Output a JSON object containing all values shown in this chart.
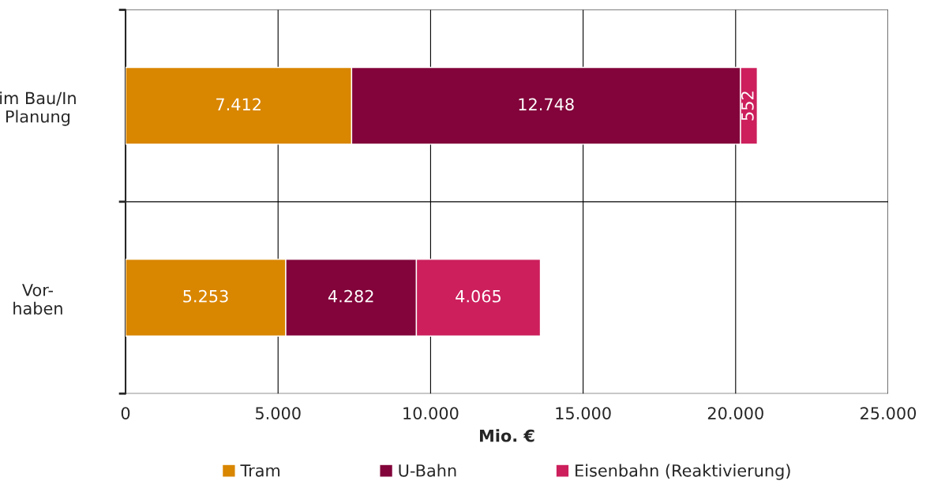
{
  "chart_data": {
    "type": "bar",
    "orientation": "horizontal",
    "stacked": true,
    "categories": [
      "im Bau/In\nPlanung",
      "Vor-\nhaben"
    ],
    "series": [
      {
        "name": "Tram",
        "color": "#d98600",
        "values": [
          7412,
          5253
        ],
        "value_labels": [
          "7.412",
          "5.253"
        ]
      },
      {
        "name": "U-Bahn",
        "color": "#82043a",
        "values": [
          12748,
          4282
        ],
        "value_labels": [
          "12.748",
          "4.282"
        ]
      },
      {
        "name": "Eisenbahn (Reaktivierung)",
        "color": "#cc1f5c",
        "values": [
          552,
          4065
        ],
        "value_labels": [
          "552",
          "4.065"
        ]
      }
    ],
    "xlabel": "Mio. €",
    "xlim": [
      0,
      25000
    ],
    "xticks": [
      0,
      {
        "value": 5000,
        "label": "5.000"
      },
      {
        "value": 10000,
        "label": "10.000"
      },
      {
        "value": 15000,
        "label": "15.000"
      },
      {
        "value": 20000,
        "label": "20.000"
      },
      {
        "value": 25000,
        "label": "25.000"
      }
    ],
    "grid": true,
    "legend": "bottom"
  }
}
